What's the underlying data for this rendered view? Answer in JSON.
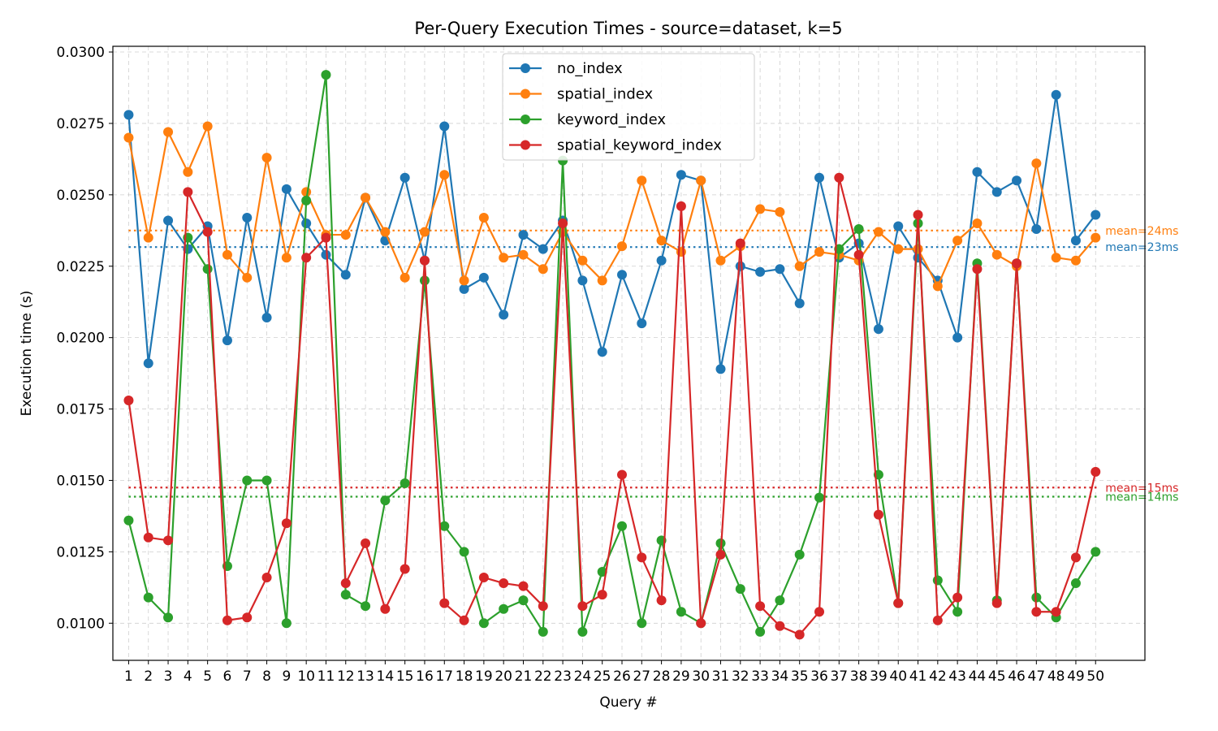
{
  "chart_data": {
    "type": "line",
    "title": "Per-Query Execution Times - source=dataset, k=5",
    "xlabel": "Query #",
    "ylabel": "Execution time (s)",
    "ylim": [
      0.0087,
      0.0302
    ],
    "xlim": [
      0.2,
      52.5
    ],
    "yticks": [
      "0.0100",
      "0.0125",
      "0.0150",
      "0.0175",
      "0.0200",
      "0.0225",
      "0.0250",
      "0.0275",
      "0.0300"
    ],
    "x": [
      1,
      2,
      3,
      4,
      5,
      6,
      7,
      8,
      9,
      10,
      11,
      12,
      13,
      14,
      15,
      16,
      17,
      18,
      19,
      20,
      21,
      22,
      23,
      24,
      25,
      26,
      27,
      28,
      29,
      30,
      31,
      32,
      33,
      34,
      35,
      36,
      37,
      38,
      39,
      40,
      41,
      42,
      43,
      44,
      45,
      46,
      47,
      48,
      49,
      50
    ],
    "grid": true,
    "legend_position": "top-center",
    "series": [
      {
        "name": "no_index",
        "color": "#1f77b4",
        "values": [
          0.0278,
          0.0191,
          0.0241,
          0.0231,
          0.0239,
          0.0199,
          0.0242,
          0.0207,
          0.0252,
          0.024,
          0.0229,
          0.0222,
          0.0249,
          0.0234,
          0.0256,
          0.0227,
          0.0274,
          0.0217,
          0.0221,
          0.0208,
          0.0236,
          0.0231,
          0.0241,
          0.022,
          0.0195,
          0.0222,
          0.0205,
          0.0227,
          0.0257,
          0.0255,
          0.0189,
          0.0225,
          0.0223,
          0.0224,
          0.0212,
          0.0256,
          0.0228,
          0.0233,
          0.0203,
          0.0239,
          0.0228,
          0.022,
          0.02,
          0.0258,
          0.0251,
          0.0255,
          0.0238,
          0.0285,
          0.0234,
          0.0243
        ]
      },
      {
        "name": "spatial_index",
        "color": "#ff7f0e",
        "values": [
          0.027,
          0.0235,
          0.0272,
          0.0258,
          0.0274,
          0.0229,
          0.0221,
          0.0263,
          0.0228,
          0.0251,
          0.0236,
          0.0236,
          0.0249,
          0.0237,
          0.0221,
          0.0237,
          0.0257,
          0.022,
          0.0242,
          0.0228,
          0.0229,
          0.0224,
          0.0237,
          0.0227,
          0.022,
          0.0232,
          0.0255,
          0.0234,
          0.023,
          0.0255,
          0.0227,
          0.0232,
          0.0245,
          0.0244,
          0.0225,
          0.023,
          0.0229,
          0.0227,
          0.0237,
          0.0231,
          0.0231,
          0.0218,
          0.0234,
          0.024,
          0.0229,
          0.0225,
          0.0261,
          0.0228,
          0.0227,
          0.0235
        ]
      },
      {
        "name": "keyword_index",
        "color": "#2ca02c",
        "values": [
          0.0136,
          0.0109,
          0.0102,
          0.0235,
          0.0224,
          0.012,
          0.015,
          0.015,
          0.01,
          0.0248,
          0.0292,
          0.011,
          0.0106,
          0.0143,
          0.0149,
          0.022,
          0.0134,
          0.0125,
          0.01,
          0.0105,
          0.0108,
          0.0097,
          0.0262,
          0.0097,
          0.0118,
          0.0134,
          0.01,
          0.0129,
          0.0104,
          0.01,
          0.0128,
          0.0112,
          0.0097,
          0.0108,
          0.0124,
          0.0144,
          0.0231,
          0.0238,
          0.0152,
          0.0107,
          0.024,
          0.0115,
          0.0104,
          0.0226,
          0.0108,
          0.0226,
          0.0109,
          0.0102,
          0.0114,
          0.0125
        ]
      },
      {
        "name": "spatial_keyword_index",
        "color": "#d62728",
        "values": [
          0.0178,
          0.013,
          0.0129,
          0.0251,
          0.0237,
          0.0101,
          0.0102,
          0.0116,
          0.0135,
          0.0228,
          0.0235,
          0.0114,
          0.0128,
          0.0105,
          0.0119,
          0.0227,
          0.0107,
          0.0101,
          0.0116,
          0.0114,
          0.0113,
          0.0106,
          0.024,
          0.0106,
          0.011,
          0.0152,
          0.0123,
          0.0108,
          0.0246,
          0.01,
          0.0124,
          0.0233,
          0.0106,
          0.0099,
          0.0096,
          0.0104,
          0.0256,
          0.0229,
          0.0138,
          0.0107,
          0.0243,
          0.0101,
          0.0109,
          0.0224,
          0.0107,
          0.0226,
          0.0104,
          0.0104,
          0.0123,
          0.0153
        ]
      }
    ],
    "mean_lines": [
      {
        "series": "spatial_index",
        "value": 0.02375,
        "label": "mean=24ms",
        "color": "#ff7f0e"
      },
      {
        "series": "no_index",
        "value": 0.02317,
        "label": "mean=23ms",
        "color": "#1f77b4"
      },
      {
        "series": "spatial_keyword_index",
        "value": 0.01475,
        "label": "mean=15ms",
        "color": "#d62728"
      },
      {
        "series": "keyword_index",
        "value": 0.01443,
        "label": "mean=14ms",
        "color": "#2ca02c"
      }
    ]
  }
}
